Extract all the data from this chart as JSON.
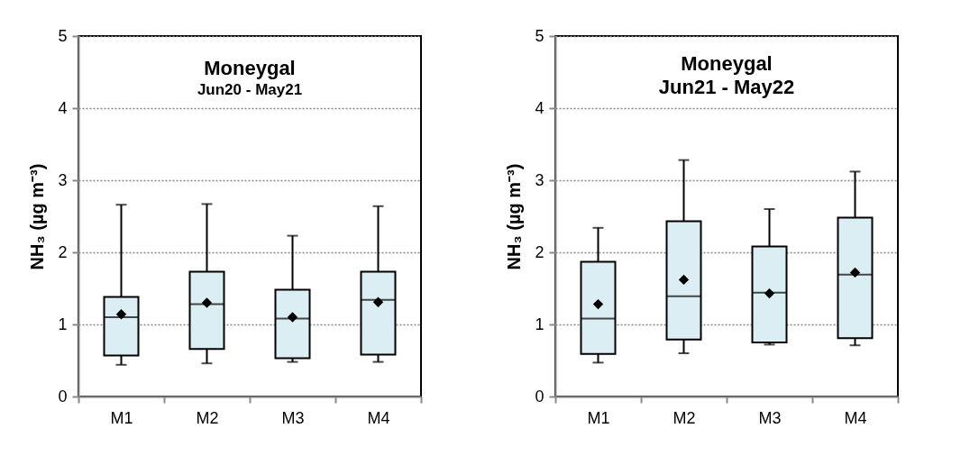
{
  "chart_data": [
    {
      "type": "box",
      "title": "Moneygal",
      "subtitle": "Jun20 - May21",
      "ylabel": "NH₃ (µg m⁻³)",
      "categories": [
        "M1",
        "M2",
        "M3",
        "M4"
      ],
      "ylim": [
        0,
        5
      ],
      "yticks": [
        0,
        1,
        2,
        3,
        4,
        5
      ],
      "grid": "y",
      "marker": "diamond",
      "series": [
        {
          "color": "#dbeef4",
          "boxes": [
            {
              "low": 0.44,
              "q1": 0.57,
              "median": 1.1,
              "q3": 1.38,
              "high": 2.66,
              "mean": 1.14
            },
            {
              "low": 0.46,
              "q1": 0.66,
              "median": 1.28,
              "q3": 1.73,
              "high": 2.67,
              "mean": 1.3
            },
            {
              "low": 0.48,
              "q1": 0.53,
              "median": 1.08,
              "q3": 1.48,
              "high": 2.23,
              "mean": 1.1
            },
            {
              "low": 0.48,
              "q1": 0.58,
              "median": 1.34,
              "q3": 1.73,
              "high": 2.64,
              "mean": 1.31
            }
          ]
        }
      ]
    },
    {
      "type": "box",
      "title": "Moneygal",
      "subtitle": "Jun21  - May22",
      "ylabel": "NH₃ (µg m⁻³)",
      "categories": [
        "M1",
        "M2",
        "M3",
        "M4"
      ],
      "ylim": [
        0,
        5
      ],
      "yticks": [
        0,
        1,
        2,
        3,
        4,
        5
      ],
      "grid": "y",
      "marker": "diamond",
      "series": [
        {
          "color": "#dbeef4",
          "boxes": [
            {
              "low": 0.47,
              "q1": 0.59,
              "median": 1.08,
              "q3": 1.87,
              "high": 2.34,
              "mean": 1.28
            },
            {
              "low": 0.6,
              "q1": 0.79,
              "median": 1.39,
              "q3": 2.43,
              "high": 3.28,
              "mean": 1.62
            },
            {
              "low": 0.72,
              "q1": 0.75,
              "median": 1.44,
              "q3": 2.08,
              "high": 2.6,
              "mean": 1.43
            },
            {
              "low": 0.71,
              "q1": 0.81,
              "median": 1.69,
              "q3": 2.48,
              "high": 3.12,
              "mean": 1.72
            }
          ]
        }
      ]
    }
  ]
}
